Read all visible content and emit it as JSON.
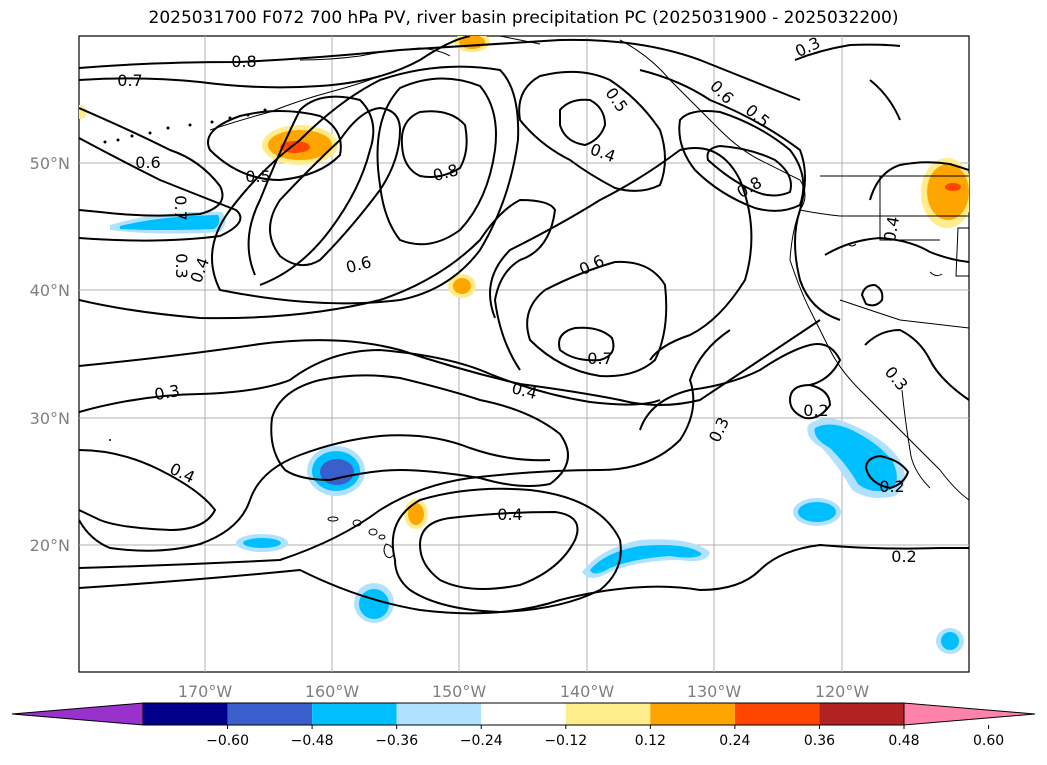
{
  "title": "2025031700 F072 700 hPa PV, river basin precipitation PC (2025031900 - 2025032200)",
  "lat_labels": [
    "50°N",
    "40°N",
    "30°N",
    "20°N"
  ],
  "lon_labels": [
    "170°W",
    "160°W",
    "150°W",
    "140°W",
    "130°W",
    "120°W"
  ],
  "contour_labels": [
    "0.8",
    "0.7",
    "0.6",
    "0.5",
    "0.7",
    "0.3",
    "0.4",
    "0.8",
    "0.6",
    "0.5",
    "0.4",
    "0.6",
    "0.7",
    "0.8",
    "0.5",
    "0.3",
    "0.4",
    "0.3",
    "0.3",
    "0.4",
    "0.4",
    "0.3",
    "0.2",
    "0.2",
    "0.2",
    "0.6",
    "0.4"
  ],
  "colorbar": {
    "ticks": [
      "−0.60",
      "−0.48",
      "−0.36",
      "−0.24",
      "−0.12",
      "0.12",
      "0.24",
      "0.36",
      "0.48",
      "0.60"
    ],
    "colors": [
      "#9932CC",
      "#00008B",
      "#3A5FCD",
      "#00BFFF",
      "#B0E2FF",
      "#FFFFFF",
      "#FFEC8B",
      "#FFA500",
      "#FF4500",
      "#B22222",
      "#FF82AB"
    ]
  }
}
